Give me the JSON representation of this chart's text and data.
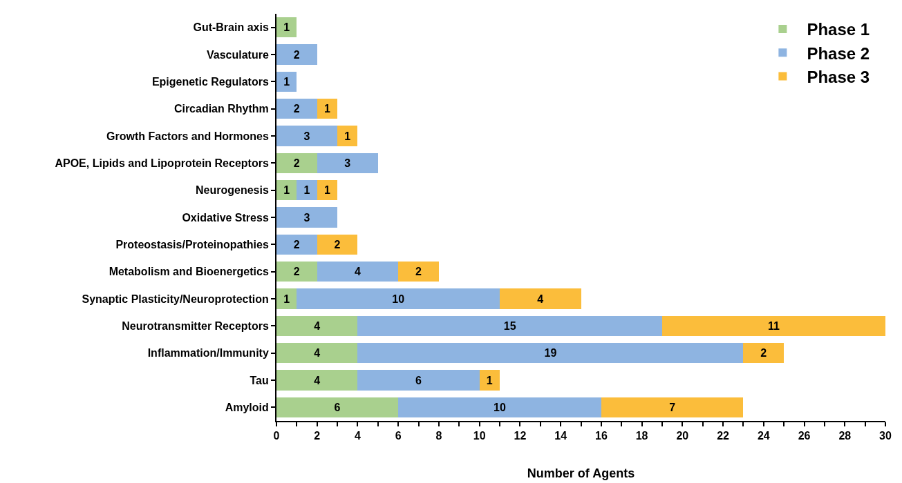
{
  "chart_data": {
    "type": "bar",
    "orientation": "horizontal",
    "stacked": true,
    "xlabel": "Number of Agents",
    "categories": [
      "Gut-Brain axis",
      "Vasculature",
      "Epigenetic Regulators",
      "Circadian Rhythm",
      "Growth Factors and Hormones",
      "APOE, Lipids and Lipoprotein Receptors",
      "Neurogenesis",
      "Oxidative Stress",
      "Proteostasis/Proteinopathies",
      "Metabolism and Bioenergetics",
      "Synaptic Plasticity/Neuroprotection",
      "Neurotransmitter Receptors",
      "Inflammation/Immunity",
      "Tau",
      "Amyloid"
    ],
    "series": [
      {
        "name": "Phase 1",
        "color": "#a9d08e",
        "values": [
          1,
          null,
          null,
          null,
          null,
          2,
          1,
          null,
          null,
          2,
          1,
          4,
          4,
          4,
          6
        ]
      },
      {
        "name": "Phase 2",
        "color": "#8eb4e1",
        "values": [
          null,
          2,
          1,
          2,
          3,
          3,
          1,
          3,
          2,
          4,
          10,
          15,
          19,
          6,
          10
        ]
      },
      {
        "name": "Phase 3",
        "color": "#fbbd3b",
        "values": [
          null,
          null,
          null,
          1,
          1,
          null,
          1,
          null,
          2,
          2,
          4,
          11,
          2,
          1,
          7
        ]
      }
    ],
    "xlim": [
      0,
      30
    ],
    "xticks": [
      0,
      {
        "value": 1,
        "label": null
      },
      2,
      {
        "value": 3,
        "label": null
      },
      4,
      {
        "value": 5,
        "label": null
      },
      6,
      {
        "value": 7,
        "label": null
      },
      8,
      {
        "value": 9,
        "label": null
      },
      10,
      {
        "value": 11,
        "label": null
      },
      12,
      {
        "value": 13,
        "label": null
      },
      14,
      {
        "value": 15,
        "label": null
      },
      16,
      {
        "value": 17,
        "label": null
      },
      18,
      {
        "value": 19,
        "label": null
      },
      20,
      {
        "value": 21,
        "label": null
      },
      22,
      {
        "value": 23,
        "label": null
      },
      24,
      {
        "value": 25,
        "label": null
      },
      26,
      {
        "value": 27,
        "label": null
      },
      28,
      {
        "value": 29,
        "label": null
      },
      30
    ],
    "grid": false,
    "legend": "top right",
    "data_labels": true
  }
}
